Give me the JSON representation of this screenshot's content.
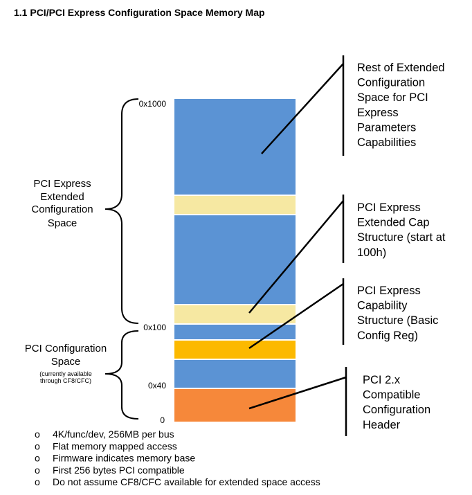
{
  "title": "1.1 PCI/PCI Express Configuration Space Memory Map",
  "addresses": [
    "0x1000",
    "0x100",
    "0x40",
    "0"
  ],
  "left_groups": [
    {
      "lines": [
        "PCI Express",
        "Extended",
        "Configuration",
        "Space"
      ]
    },
    {
      "lines": [
        "PCI Configuration",
        "Space"
      ],
      "note": [
        "(currently available",
        "through CF8/CFC)"
      ]
    }
  ],
  "callouts": [
    {
      "lines": [
        "Rest of Extended",
        "Configuration",
        "Space for PCI",
        "Express",
        "Parameters",
        "Capabilities"
      ]
    },
    {
      "lines": [
        "PCI Express",
        "Extended Cap",
        "Structure (start at",
        "100h)"
      ]
    },
    {
      "lines": [
        "PCI Express",
        "Capability",
        "Structure (Basic",
        "Config Reg)"
      ]
    },
    {
      "lines": [
        "PCI 2.x",
        "Compatible",
        "Configuration",
        "Header"
      ]
    }
  ],
  "bullet_symbol": "o",
  "bullets": [
    "4K/func/dev, 256MB per bus",
    "Flat memory mapped access",
    "Firmware indicates memory base",
    "First 256 bytes PCI compatible",
    "Do not assume CF8/CFC available for extended space access"
  ]
}
